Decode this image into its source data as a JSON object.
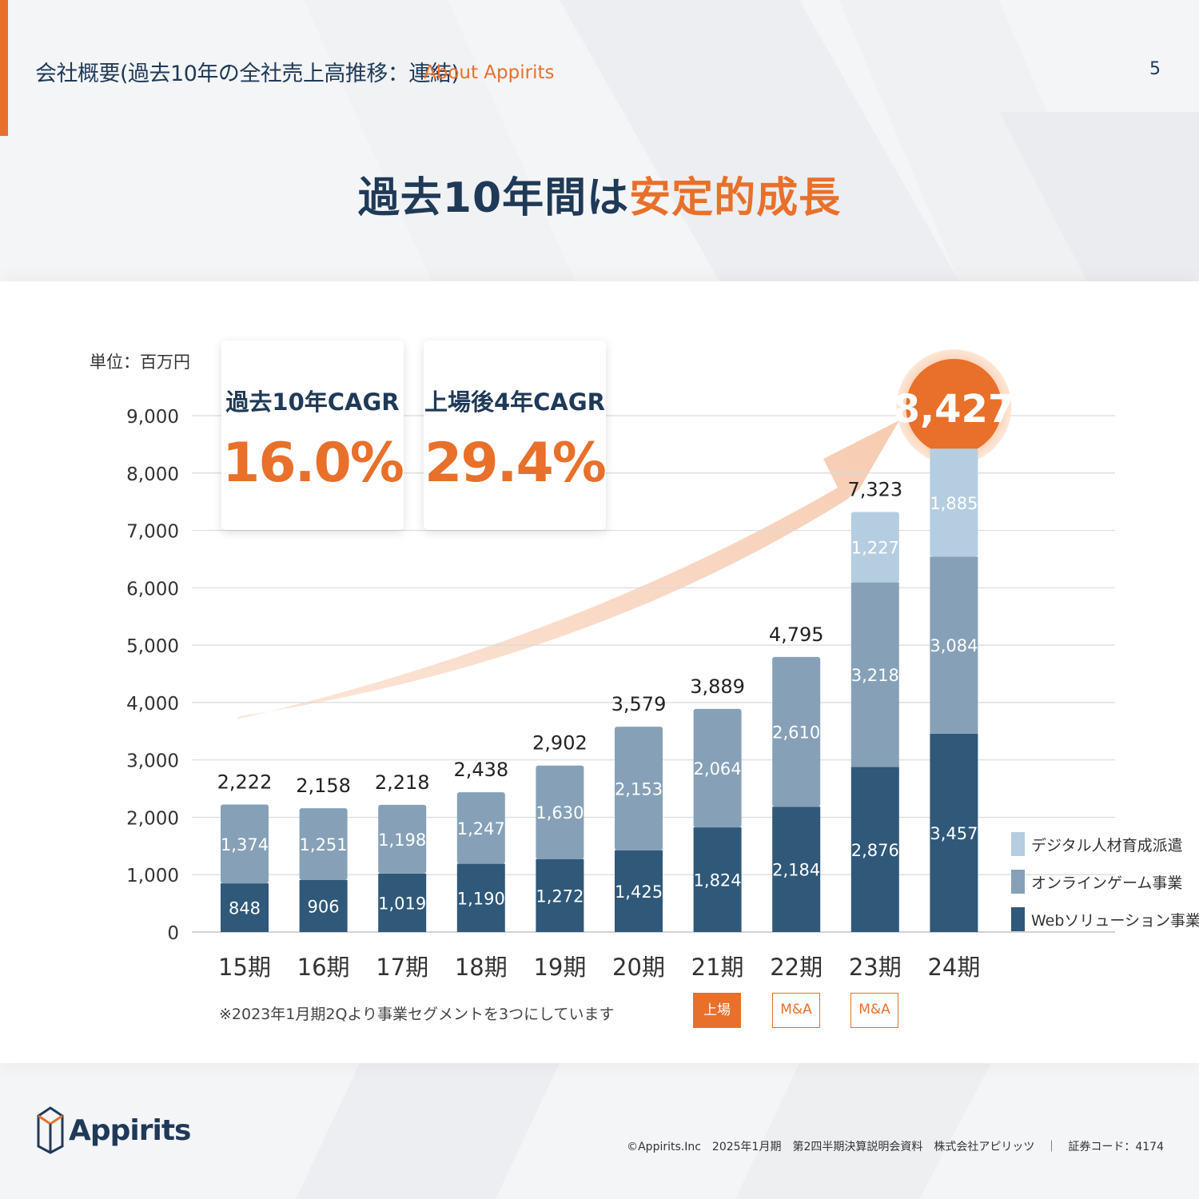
{
  "header": {
    "title": "会社概要(過去10年の全社売上高推移：連結)",
    "subtitle": "About Appirits",
    "page_number": "5"
  },
  "headline": {
    "part1": "過去10年間は",
    "part2": "安定的成長"
  },
  "colors": {
    "accent": "#e8702a",
    "navy": "#1f3a57",
    "web": "#2f5879",
    "game": "#86a1b7",
    "digital": "#b5cde0"
  },
  "unit_label": "単位：百万円",
  "cagr": [
    {
      "label": "過去10年CAGR",
      "value": "16.0%"
    },
    {
      "label": "上場後4年CAGR",
      "value": "29.4%"
    }
  ],
  "highlight_total": "8,427",
  "chart_data": {
    "type": "bar",
    "stacked": true,
    "categories": [
      "15期",
      "16期",
      "17期",
      "18期",
      "19期",
      "20期",
      "21期",
      "22期",
      "23期",
      "24期"
    ],
    "series": [
      {
        "name": "Webソリューション事業",
        "color": "#2f5879",
        "values": [
          848,
          906,
          1019,
          1190,
          1272,
          1425,
          1824,
          2184,
          2876,
          3457
        ],
        "labels": [
          "848",
          "906",
          "1,019",
          "1,190",
          "1,272",
          "1,425",
          "1,824",
          "2,184",
          "2,876",
          "3,457"
        ]
      },
      {
        "name": "オンラインゲーム事業",
        "color": "#86a1b7",
        "values": [
          1374,
          1251,
          1198,
          1247,
          1630,
          2153,
          2064,
          2610,
          3218,
          3084
        ],
        "labels": [
          "1,374",
          "1,251",
          "1,198",
          "1,247",
          "1,630",
          "2,153",
          "2,064",
          "2,610",
          "3,218",
          "3,084"
        ]
      },
      {
        "name": "デジタル人材育成派遣",
        "color": "#b5cde0",
        "values": [
          0,
          0,
          0,
          0,
          0,
          0,
          0,
          0,
          1227,
          1885
        ],
        "labels": [
          "",
          "",
          "",
          "",
          "",
          "",
          "",
          "",
          "1,227",
          "1,885"
        ]
      }
    ],
    "totals": [
      2222,
      2158,
      2218,
      2438,
      2902,
      3579,
      3889,
      4795,
      7323,
      8427
    ],
    "total_labels": [
      "2,222",
      "2,158",
      "2,218",
      "2,438",
      "2,902",
      "3,579",
      "3,889",
      "4,795",
      "7,323",
      "8,427"
    ],
    "ylim": [
      0,
      9000
    ],
    "yticks": [
      0,
      1000,
      2000,
      3000,
      4000,
      5000,
      6000,
      7000,
      8000,
      9000
    ],
    "ytick_labels": [
      "0",
      "1,000",
      "2,000",
      "3,000",
      "4,000",
      "5,000",
      "6,000",
      "7,000",
      "8,000",
      "9,000"
    ],
    "grid": true,
    "legend": [
      "デジタル人材育成派遣",
      "オンラインゲーム事業",
      "Webソリューション事業"
    ],
    "legend_position": "right"
  },
  "legend": {
    "items": [
      {
        "label": "デジタル人材育成派遣",
        "color": "#b5cde0"
      },
      {
        "label": "オンラインゲーム事業",
        "color": "#86a1b7"
      },
      {
        "label": "Webソリューション事業",
        "color": "#2f5879"
      }
    ]
  },
  "note": "※2023年1月期2Qより事業セグメントを3つにしています",
  "badges": [
    {
      "label": "上場",
      "category": "21期",
      "style": "solid"
    },
    {
      "label": "M&A",
      "category": "22期",
      "style": "outline"
    },
    {
      "label": "M&A",
      "category": "23期",
      "style": "outline"
    }
  ],
  "logo": {
    "text": "Appirits"
  },
  "footer": "©Appirits.Inc　2025年1月期　第2四半期決算説明会資料　株式会社アピリッツ　｜　証券コード：4174"
}
